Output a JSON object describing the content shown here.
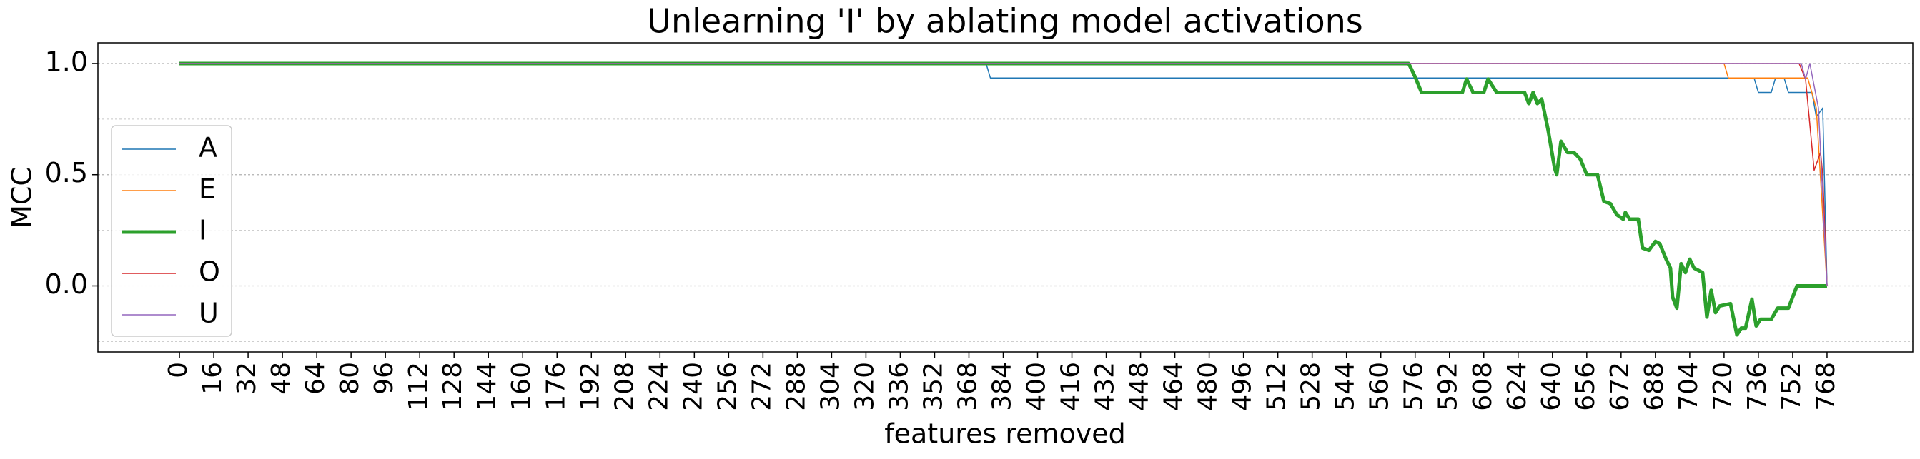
{
  "chart_data": {
    "type": "line",
    "title": "Unlearning 'I' by ablating model activations",
    "xlabel": "features removed",
    "ylabel": "MCC",
    "xlim": [
      -38,
      808
    ],
    "ylim": [
      -0.297,
      1.093
    ],
    "xticks": [
      0,
      16,
      32,
      48,
      64,
      80,
      96,
      112,
      128,
      144,
      160,
      176,
      192,
      208,
      224,
      240,
      256,
      272,
      288,
      304,
      320,
      336,
      352,
      368,
      384,
      400,
      416,
      432,
      448,
      464,
      480,
      496,
      512,
      528,
      544,
      560,
      576,
      592,
      608,
      624,
      640,
      656,
      672,
      688,
      704,
      720,
      736,
      752,
      768
    ],
    "yticks": [
      {
        "value": 0,
        "label": "0.0"
      },
      {
        "value": 0.5,
        "label": "0.5"
      },
      {
        "value": 1,
        "label": "1.0"
      }
    ],
    "yminorticks": [
      -0.25,
      0.25,
      0.75
    ],
    "grid": true,
    "legend": "left",
    "series": [
      {
        "name": "A",
        "color": "#1f77b4",
        "linewidth": 1.5,
        "x": [
          0,
          376,
          378,
          734,
          736,
          742,
          744,
          748,
          750,
          761,
          763,
          766,
          768
        ],
        "values": [
          1,
          1,
          0.935,
          0.935,
          0.87,
          0.87,
          0.935,
          0.935,
          0.87,
          0.87,
          0.76,
          0.8,
          0
        ]
      },
      {
        "name": "E",
        "color": "#ff7f0e",
        "linewidth": 1.5,
        "x": [
          0,
          720,
          722,
          759,
          763,
          768
        ],
        "values": [
          1,
          1,
          0.935,
          0.935,
          0.8,
          0
        ]
      },
      {
        "name": "I",
        "color": "#2ca02c",
        "linewidth": 5,
        "x": [
          0,
          573,
          576,
          579,
          598,
          600,
          603,
          608,
          610,
          614,
          627,
          629,
          631,
          633,
          635,
          638,
          641,
          642,
          644,
          647,
          650,
          653,
          656,
          661,
          664,
          667,
          670,
          673,
          674,
          676,
          680,
          682,
          685,
          688,
          690,
          693,
          695,
          696,
          698,
          700,
          702,
          704,
          706,
          710,
          712,
          714,
          716,
          718,
          723,
          726,
          728,
          730,
          733,
          735,
          737,
          742,
          745,
          750,
          754,
          768
        ],
        "values": [
          1,
          1,
          0.94,
          0.87,
          0.87,
          0.93,
          0.87,
          0.87,
          0.93,
          0.87,
          0.87,
          0.82,
          0.87,
          0.82,
          0.84,
          0.7,
          0.53,
          0.5,
          0.65,
          0.6,
          0.6,
          0.57,
          0.5,
          0.5,
          0.38,
          0.37,
          0.32,
          0.3,
          0.33,
          0.3,
          0.3,
          0.17,
          0.16,
          0.2,
          0.19,
          0.12,
          0.08,
          -0.05,
          -0.1,
          0.1,
          0.06,
          0.12,
          0.08,
          0.06,
          -0.14,
          -0.02,
          -0.12,
          -0.09,
          -0.08,
          -0.22,
          -0.19,
          -0.19,
          -0.06,
          -0.18,
          -0.15,
          -0.15,
          -0.1,
          -0.1,
          0,
          0
        ]
      },
      {
        "name": "O",
        "color": "#d62728",
        "linewidth": 1.5,
        "x": [
          0,
          755,
          758,
          762,
          765,
          766,
          768
        ],
        "values": [
          1,
          1,
          0.93,
          0.52,
          0.6,
          0.5,
          0
        ]
      },
      {
        "name": "U",
        "color": "#9467bd",
        "linewidth": 1.5,
        "x": [
          0,
          756,
          758,
          760,
          764,
          768
        ],
        "values": [
          1,
          1,
          0.93,
          1,
          0.8,
          0
        ]
      }
    ]
  }
}
